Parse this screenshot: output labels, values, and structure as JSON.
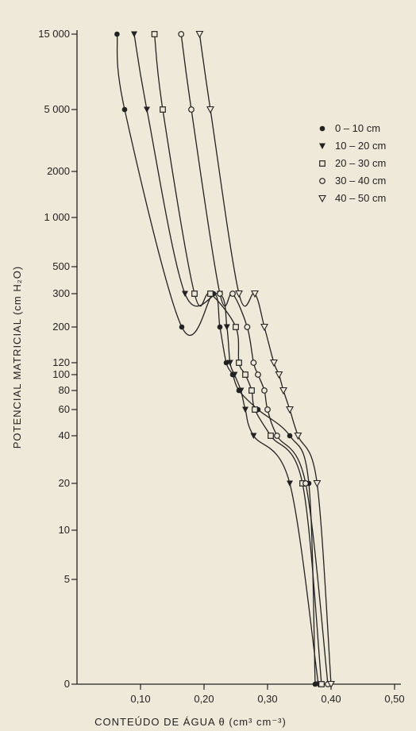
{
  "chart_data": {
    "type": "line",
    "title": "",
    "xlabel": "CONTEÚDO DE ÁGUA  θ  (cm³ cm⁻³)",
    "ylabel": "POTENCIAL MATRICIAL (cm H₂O)",
    "xlim": [
      0.0,
      0.55
    ],
    "x_ticks": [
      {
        "v": 0.1,
        "label": "0,10"
      },
      {
        "v": 0.2,
        "label": "0,20"
      },
      {
        "v": 0.3,
        "label": "0,30"
      },
      {
        "v": 0.4,
        "label": "0,40"
      },
      {
        "v": 0.5,
        "label": "0,50"
      }
    ],
    "y_ticks": [
      {
        "v": 0,
        "label": "0"
      },
      {
        "v": 5,
        "label": "5"
      },
      {
        "v": 10,
        "label": "10"
      },
      {
        "v": 20,
        "label": "20"
      },
      {
        "v": 40,
        "label": "40"
      },
      {
        "v": 60,
        "label": "60"
      },
      {
        "v": 80,
        "label": "80"
      },
      {
        "v": 100,
        "label": "100"
      },
      {
        "v": 120,
        "label": "120"
      },
      {
        "v": 200,
        "label": "200"
      },
      {
        "v": 300,
        "label": "300"
      },
      {
        "v": 500,
        "label": "500"
      },
      {
        "v": 1000,
        "label": "1 000"
      },
      {
        "v": 2000,
        "label": "2000"
      },
      {
        "v": 5000,
        "label": "5 000"
      },
      {
        "v": 15000,
        "label": "15 000"
      }
    ],
    "legend_position": "right",
    "series": [
      {
        "name": "0 – 10 cm",
        "marker": "filled-circle",
        "x": [
          0.375,
          0.365,
          0.335,
          0.285,
          0.255,
          0.245,
          0.235,
          0.225,
          0.215,
          0.165,
          0.075,
          0.063
        ],
        "y": [
          0,
          20,
          40,
          60,
          80,
          100,
          120,
          200,
          300,
          200,
          5000,
          15000
        ]
      },
      {
        "name": "10 – 20 cm",
        "marker": "filled-triangle",
        "x": [
          0.38,
          0.335,
          0.278,
          0.265,
          0.258,
          0.248,
          0.241,
          0.236,
          0.225,
          0.17,
          0.11,
          0.09
        ],
        "y": [
          0,
          20,
          40,
          60,
          80,
          100,
          120,
          200,
          300,
          300,
          5000,
          15000
        ]
      },
      {
        "name": "20 – 30 cm",
        "marker": "open-square",
        "x": [
          0.385,
          0.355,
          0.305,
          0.28,
          0.275,
          0.265,
          0.255,
          0.25,
          0.21,
          0.185,
          0.135,
          0.122
        ],
        "y": [
          0,
          20,
          40,
          60,
          80,
          100,
          120,
          200,
          300,
          300,
          5000,
          15000
        ]
      },
      {
        "name": "30 – 40 cm",
        "marker": "open-circle",
        "x": [
          0.395,
          0.36,
          0.315,
          0.3,
          0.295,
          0.285,
          0.278,
          0.268,
          0.245,
          0.225,
          0.18,
          0.164
        ],
        "y": [
          0,
          20,
          40,
          60,
          80,
          100,
          120,
          200,
          300,
          300,
          5000,
          15000
        ]
      },
      {
        "name": "40 – 50 cm",
        "marker": "open-triangle",
        "x": [
          0.4,
          0.378,
          0.348,
          0.335,
          0.325,
          0.318,
          0.31,
          0.295,
          0.28,
          0.255,
          0.21,
          0.193
        ],
        "y": [
          0,
          20,
          40,
          60,
          80,
          100,
          120,
          200,
          300,
          300,
          5000,
          15000
        ]
      }
    ]
  }
}
